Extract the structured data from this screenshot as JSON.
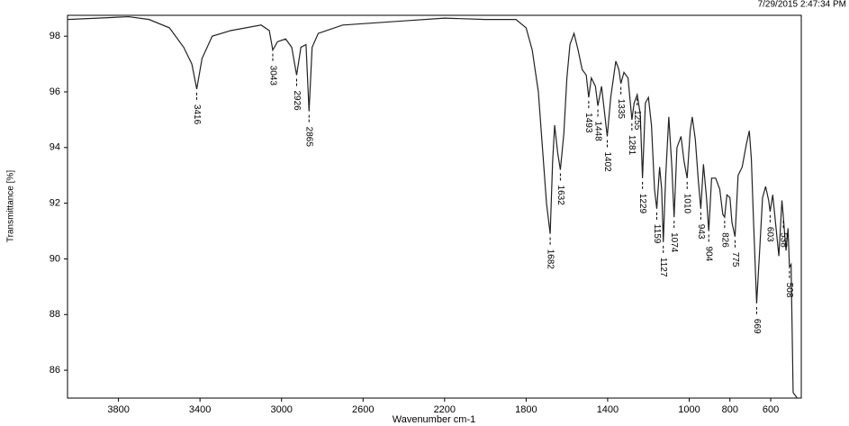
{
  "chart_data": {
    "type": "line",
    "timestamp": "7/29/2015  2:47:34 PM",
    "xlabel": "Wavenumber cm-1",
    "ylabel": "Transmittance [%]",
    "xlim": [
      4050,
      450
    ],
    "ylim": [
      85,
      98.75
    ],
    "xticks": [
      3800,
      3400,
      3000,
      2600,
      2200,
      1800,
      1400,
      1000,
      800,
      600
    ],
    "yticks": [
      86,
      88,
      90,
      92,
      94,
      96,
      98
    ],
    "x": [
      4050,
      3900,
      3750,
      3650,
      3550,
      3480,
      3440,
      3416,
      3390,
      3340,
      3250,
      3100,
      3060,
      3043,
      3020,
      2980,
      2950,
      2926,
      2905,
      2880,
      2865,
      2850,
      2820,
      2700,
      2400,
      2200,
      2000,
      1850,
      1800,
      1770,
      1740,
      1720,
      1700,
      1682,
      1670,
      1660,
      1645,
      1632,
      1615,
      1600,
      1585,
      1565,
      1545,
      1525,
      1505,
      1493,
      1480,
      1460,
      1448,
      1430,
      1402,
      1385,
      1360,
      1345,
      1335,
      1320,
      1300,
      1281,
      1270,
      1255,
      1240,
      1229,
      1215,
      1200,
      1185,
      1170,
      1159,
      1145,
      1135,
      1127,
      1115,
      1100,
      1085,
      1074,
      1060,
      1040,
      1025,
      1010,
      995,
      985,
      970,
      955,
      943,
      930,
      915,
      904,
      890,
      870,
      850,
      835,
      826,
      815,
      800,
      790,
      775,
      760,
      740,
      720,
      705,
      695,
      685,
      669,
      655,
      640,
      625,
      610,
      603,
      590,
      575,
      560,
      545,
      538,
      525,
      515,
      508,
      500,
      490,
      470
    ],
    "series": [
      {
        "name": "Transmittance",
        "color": "#222222",
        "values": [
          98.6,
          98.65,
          98.7,
          98.6,
          98.3,
          97.6,
          97,
          96.1,
          97.2,
          98,
          98.2,
          98.4,
          98.2,
          97.5,
          97.8,
          97.9,
          97.6,
          96.6,
          97.6,
          97.7,
          95.3,
          97.6,
          98.1,
          98.4,
          98.55,
          98.65,
          98.6,
          98.6,
          98.3,
          97.5,
          96,
          94,
          92,
          90.9,
          93.5,
          94.8,
          93.8,
          93.2,
          94.5,
          96.5,
          97.7,
          98.1,
          97.5,
          96.8,
          96.6,
          95.8,
          96.5,
          96.2,
          95.5,
          96.2,
          94.4,
          95.8,
          97.1,
          96.8,
          96.3,
          96.7,
          96.5,
          95,
          95.6,
          95.9,
          95.2,
          92.9,
          95.6,
          95.8,
          94.8,
          92.5,
          91.8,
          93.3,
          92.5,
          90.6,
          93,
          95.1,
          93.3,
          91.5,
          94,
          94.4,
          93.5,
          92.9,
          94.6,
          95.1,
          94.3,
          92.8,
          91.8,
          93.4,
          92.2,
          91,
          92.9,
          92.9,
          92.5,
          91.6,
          91.5,
          92.3,
          92.2,
          91.3,
          90.8,
          93,
          93.3,
          94.1,
          94.6,
          93.6,
          91.5,
          88.4,
          90.2,
          92.2,
          92.6,
          92.1,
          91.7,
          92.3,
          91.2,
          90.1,
          92.1,
          91.5,
          90.3,
          91.1,
          89.7,
          89.8,
          85.2,
          85
        ]
      }
    ],
    "peaks": [
      3416,
      3043,
      2926,
      2865,
      1682,
      1632,
      1493,
      1448,
      1402,
      1335,
      1281,
      1255,
      1229,
      1159,
      1127,
      1074,
      1010,
      943,
      904,
      826,
      775,
      669,
      603,
      538,
      508
    ]
  }
}
